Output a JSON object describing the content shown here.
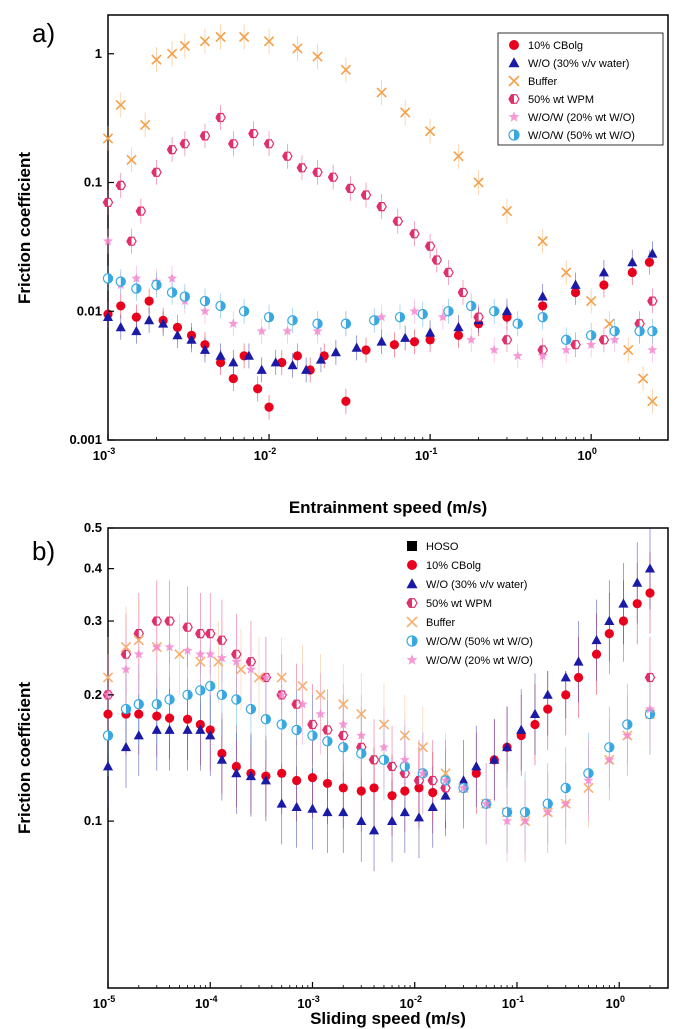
{
  "chart_data": [
    {
      "type": "scatter",
      "panel_label": "a)",
      "xlabel": "Entrainment speed (m/s)",
      "ylabel": "Friction coefficient",
      "xscale": "log",
      "yscale": "log",
      "xlim": [
        0.001,
        3
      ],
      "ylim": [
        0.001,
        2
      ],
      "x_ticks": [
        {
          "value": 0.001,
          "label": "10",
          "exp": "-3"
        },
        {
          "value": 0.01,
          "label": "10",
          "exp": "-2"
        },
        {
          "value": 0.1,
          "label": "10",
          "exp": "-1"
        },
        {
          "value": 1,
          "label": "10",
          "exp": "0"
        }
      ],
      "y_ticks": [
        {
          "value": 0.001,
          "label": "0.001"
        },
        {
          "value": 0.01,
          "label": "0.01"
        },
        {
          "value": 0.1,
          "label": "0.1"
        },
        {
          "value": 1,
          "label": "1"
        }
      ],
      "legend_position": "top-right",
      "series": [
        {
          "name": "10% CBolg",
          "color": "#e8001c",
          "marker": "circle",
          "x": [
            0.001,
            0.0012,
            0.0015,
            0.0018,
            0.0022,
            0.0027,
            0.0033,
            0.004,
            0.005,
            0.006,
            0.007,
            0.0085,
            0.01,
            0.012,
            0.015,
            0.018,
            0.022,
            0.03,
            0.04,
            0.06,
            0.08,
            0.1,
            0.15,
            0.2,
            0.3,
            0.5,
            0.8,
            1.2,
            1.8,
            2.3
          ],
          "y": [
            0.0095,
            0.011,
            0.009,
            0.012,
            0.0085,
            0.0075,
            0.0065,
            0.0055,
            0.004,
            0.003,
            0.0045,
            0.0025,
            0.0018,
            0.004,
            0.0045,
            0.0035,
            0.0045,
            0.002,
            0.005,
            0.0055,
            0.0058,
            0.006,
            0.0065,
            0.008,
            0.009,
            0.011,
            0.014,
            0.016,
            0.02,
            0.024
          ]
        },
        {
          "name": "W/O (30% v/v water)",
          "color": "#1a1aa6",
          "marker": "triangle",
          "x": [
            0.001,
            0.0012,
            0.0015,
            0.0018,
            0.0022,
            0.0027,
            0.0033,
            0.004,
            0.005,
            0.006,
            0.0075,
            0.009,
            0.011,
            0.014,
            0.017,
            0.021,
            0.026,
            0.035,
            0.05,
            0.07,
            0.1,
            0.15,
            0.2,
            0.3,
            0.5,
            0.8,
            1.2,
            1.8,
            2.4
          ],
          "y": [
            0.009,
            0.0075,
            0.007,
            0.0085,
            0.008,
            0.0065,
            0.006,
            0.005,
            0.0045,
            0.004,
            0.0045,
            0.0035,
            0.004,
            0.0038,
            0.0035,
            0.0042,
            0.0048,
            0.0052,
            0.0058,
            0.0062,
            0.0068,
            0.0075,
            0.0085,
            0.01,
            0.013,
            0.016,
            0.02,
            0.024,
            0.028
          ]
        },
        {
          "name": "Buffer",
          "color": "#f5a04a",
          "marker": "x",
          "x": [
            0.001,
            0.0012,
            0.0014,
            0.0017,
            0.002,
            0.0025,
            0.003,
            0.004,
            0.005,
            0.007,
            0.01,
            0.015,
            0.02,
            0.03,
            0.05,
            0.07,
            0.1,
            0.15,
            0.2,
            0.3,
            0.5,
            0.7,
            1.0,
            1.3,
            1.7,
            2.1,
            2.4
          ],
          "y": [
            0.22,
            0.4,
            0.15,
            0.28,
            0.9,
            1.0,
            1.15,
            1.25,
            1.35,
            1.35,
            1.25,
            1.1,
            0.95,
            0.75,
            0.5,
            0.35,
            0.25,
            0.16,
            0.1,
            0.06,
            0.035,
            0.02,
            0.012,
            0.008,
            0.005,
            0.003,
            0.002
          ]
        },
        {
          "name": "50% wt WPM",
          "color": "#e0306a",
          "marker": "hex",
          "x": [
            0.001,
            0.0012,
            0.0014,
            0.0016,
            0.002,
            0.0025,
            0.003,
            0.004,
            0.005,
            0.006,
            0.008,
            0.01,
            0.013,
            0.016,
            0.02,
            0.025,
            0.032,
            0.04,
            0.05,
            0.063,
            0.08,
            0.1,
            0.11,
            0.13,
            0.16,
            0.2,
            0.3,
            0.5,
            0.8,
            1.2,
            2.0,
            2.4
          ],
          "y": [
            0.07,
            0.095,
            0.035,
            0.06,
            0.12,
            0.18,
            0.2,
            0.23,
            0.32,
            0.2,
            0.24,
            0.2,
            0.16,
            0.13,
            0.12,
            0.11,
            0.09,
            0.08,
            0.065,
            0.05,
            0.04,
            0.032,
            0.025,
            0.02,
            0.014,
            0.009,
            0.006,
            0.005,
            0.0055,
            0.006,
            0.008,
            0.012
          ]
        },
        {
          "name": "W/O/W (20% wt W/O)",
          "color": "#f48ad0",
          "marker": "star",
          "x": [
            0.001,
            0.0012,
            0.0015,
            0.002,
            0.0025,
            0.003,
            0.004,
            0.006,
            0.009,
            0.013,
            0.02,
            0.03,
            0.05,
            0.08,
            0.12,
            0.18,
            0.25,
            0.35,
            0.5,
            0.7,
            1.0,
            1.4,
            2.0,
            2.4
          ],
          "y": [
            0.035,
            0.016,
            0.018,
            0.017,
            0.018,
            0.012,
            0.01,
            0.008,
            0.007,
            0.007,
            0.007,
            0.008,
            0.009,
            0.01,
            0.009,
            0.006,
            0.005,
            0.0045,
            0.0045,
            0.005,
            0.0055,
            0.006,
            0.007,
            0.005
          ]
        },
        {
          "name": "W/O/W (50% wt W/O)",
          "color": "#3aa8e0",
          "marker": "halfcircle",
          "x": [
            0.001,
            0.0012,
            0.0015,
            0.002,
            0.0025,
            0.003,
            0.004,
            0.005,
            0.007,
            0.01,
            0.014,
            0.02,
            0.03,
            0.045,
            0.065,
            0.09,
            0.13,
            0.18,
            0.25,
            0.35,
            0.5,
            0.7,
            1.0,
            1.4,
            2.0,
            2.4
          ],
          "y": [
            0.018,
            0.017,
            0.015,
            0.016,
            0.014,
            0.013,
            0.012,
            0.011,
            0.01,
            0.009,
            0.0085,
            0.008,
            0.008,
            0.0085,
            0.009,
            0.0095,
            0.01,
            0.011,
            0.01,
            0.008,
            0.009,
            0.006,
            0.0065,
            0.007,
            0.007,
            0.007
          ]
        }
      ]
    },
    {
      "type": "scatter",
      "panel_label": "b)",
      "xlabel": "Sliding speed (m/s)",
      "ylabel": "Friction coefficient",
      "xscale": "log",
      "yscale": "log",
      "xlim": [
        1e-05,
        3
      ],
      "ylim": [
        0.04,
        0.5
      ],
      "x_ticks": [
        {
          "value": 1e-05,
          "label": "10",
          "exp": "-5"
        },
        {
          "value": 0.0001,
          "label": "10",
          "exp": "-4"
        },
        {
          "value": 0.001,
          "label": "10",
          "exp": "-3"
        },
        {
          "value": 0.01,
          "label": "10",
          "exp": "-2"
        },
        {
          "value": 0.1,
          "label": "10",
          "exp": "-1"
        },
        {
          "value": 1,
          "label": "10",
          "exp": "0"
        }
      ],
      "y_ticks": [
        {
          "value": 0.1,
          "label": "0.1"
        },
        {
          "value": 0.2,
          "label": "0.2"
        },
        {
          "value": 0.3,
          "label": "0.3"
        },
        {
          "value": 0.4,
          "label": "0.4"
        },
        {
          "value": 0.5,
          "label": "0.5"
        }
      ],
      "legend_position": "top-right",
      "series": [
        {
          "name": "HOSO",
          "color": "#000000",
          "marker": "square",
          "x": [],
          "y": []
        },
        {
          "name": "10% CBolg",
          "color": "#e8001c",
          "marker": "circle",
          "x": [
            1e-05,
            1.5e-05,
            2e-05,
            3e-05,
            4e-05,
            6e-05,
            8e-05,
            0.0001,
            0.00013,
            0.00018,
            0.00025,
            0.00035,
            0.0005,
            0.0007,
            0.001,
            0.0014,
            0.002,
            0.003,
            0.004,
            0.006,
            0.008,
            0.011,
            0.015,
            0.02,
            0.03,
            0.04,
            0.06,
            0.08,
            0.11,
            0.15,
            0.2,
            0.3,
            0.4,
            0.6,
            0.8,
            1.1,
            1.5,
            2.0
          ],
          "y": [
            0.18,
            0.18,
            0.18,
            0.178,
            0.176,
            0.175,
            0.17,
            0.165,
            0.145,
            0.135,
            0.13,
            0.128,
            0.13,
            0.125,
            0.127,
            0.123,
            0.12,
            0.118,
            0.12,
            0.115,
            0.118,
            0.12,
            0.117,
            0.12,
            0.12,
            0.13,
            0.14,
            0.15,
            0.16,
            0.17,
            0.185,
            0.2,
            0.22,
            0.25,
            0.28,
            0.3,
            0.33,
            0.35
          ]
        },
        {
          "name": "W/O (30% v/v water)",
          "color": "#1a1aa6",
          "marker": "triangle",
          "x": [
            1e-05,
            1.5e-05,
            2e-05,
            3e-05,
            4e-05,
            6e-05,
            8e-05,
            0.0001,
            0.00013,
            0.00018,
            0.00025,
            0.00035,
            0.0005,
            0.0007,
            0.001,
            0.0014,
            0.002,
            0.003,
            0.004,
            0.006,
            0.008,
            0.011,
            0.015,
            0.02,
            0.03,
            0.04,
            0.06,
            0.08,
            0.11,
            0.15,
            0.2,
            0.3,
            0.4,
            0.6,
            0.8,
            1.1,
            1.5,
            2.0
          ],
          "y": [
            0.135,
            0.15,
            0.16,
            0.165,
            0.165,
            0.165,
            0.165,
            0.16,
            0.14,
            0.13,
            0.128,
            0.125,
            0.11,
            0.108,
            0.107,
            0.105,
            0.105,
            0.1,
            0.095,
            0.1,
            0.105,
            0.102,
            0.108,
            0.115,
            0.125,
            0.135,
            0.14,
            0.15,
            0.165,
            0.18,
            0.2,
            0.22,
            0.24,
            0.27,
            0.3,
            0.33,
            0.37,
            0.4
          ]
        },
        {
          "name": "50% wt  WPM",
          "color": "#e0306a",
          "marker": "hex",
          "x": [
            1e-05,
            1.5e-05,
            2e-05,
            3e-05,
            4e-05,
            6e-05,
            8e-05,
            0.0001,
            0.00013,
            0.00018,
            0.00025,
            0.00035,
            0.0005,
            0.0007,
            0.001,
            0.0014,
            0.002,
            0.003,
            0.004,
            0.006,
            0.008,
            0.011,
            0.015,
            0.02,
            2.0
          ],
          "y": [
            0.2,
            0.25,
            0.28,
            0.3,
            0.3,
            0.29,
            0.28,
            0.28,
            0.27,
            0.25,
            0.24,
            0.22,
            0.2,
            0.19,
            0.17,
            0.165,
            0.16,
            0.15,
            0.14,
            0.135,
            0.13,
            0.125,
            0.125,
            0.12,
            0.22
          ]
        },
        {
          "name": "Buffer",
          "color": "#f5b070",
          "marker": "x",
          "x": [
            1e-05,
            1.5e-05,
            2e-05,
            3e-05,
            5e-05,
            8e-05,
            0.00012,
            0.0002,
            0.0003,
            0.0005,
            0.0008,
            0.0012,
            0.002,
            0.003,
            0.005,
            0.008,
            0.012,
            0.02,
            0.03,
            0.05,
            0.08,
            0.12,
            0.2,
            0.3,
            0.5,
            0.8,
            1.2,
            2.0
          ],
          "y": [
            0.22,
            0.26,
            0.27,
            0.26,
            0.25,
            0.24,
            0.24,
            0.23,
            0.22,
            0.22,
            0.21,
            0.2,
            0.19,
            0.18,
            0.17,
            0.16,
            0.15,
            0.13,
            0.12,
            0.11,
            0.105,
            0.1,
            0.105,
            0.11,
            0.12,
            0.14,
            0.16,
            0.18
          ]
        },
        {
          "name": "W/O/W (50% wt W/O)",
          "color": "#3aa8e0",
          "marker": "halfcircle",
          "x": [
            1e-05,
            1.5e-05,
            2e-05,
            3e-05,
            4e-05,
            6e-05,
            8e-05,
            0.0001,
            0.00013,
            0.00018,
            0.00025,
            0.00035,
            0.0005,
            0.0007,
            0.001,
            0.0014,
            0.002,
            0.003,
            0.005,
            0.008,
            0.012,
            0.02,
            0.03,
            0.05,
            0.08,
            0.12,
            0.2,
            0.3,
            0.5,
            0.8,
            1.2,
            2.0
          ],
          "y": [
            0.16,
            0.185,
            0.19,
            0.19,
            0.195,
            0.2,
            0.205,
            0.21,
            0.2,
            0.195,
            0.185,
            0.175,
            0.17,
            0.165,
            0.16,
            0.155,
            0.15,
            0.145,
            0.14,
            0.135,
            0.13,
            0.125,
            0.12,
            0.11,
            0.105,
            0.105,
            0.11,
            0.12,
            0.13,
            0.15,
            0.17,
            0.18
          ]
        },
        {
          "name": "W/O/W (20% wt W/O)",
          "color": "#f48ad0",
          "marker": "star",
          "x": [
            1e-05,
            1.5e-05,
            2e-05,
            3e-05,
            4e-05,
            6e-05,
            8e-05,
            0.0001,
            0.00013,
            0.00018,
            0.00025,
            0.00035,
            0.0005,
            0.0008,
            0.0012,
            0.002,
            0.003,
            0.005,
            0.008,
            0.012,
            0.02,
            0.03,
            0.05,
            0.08,
            0.12,
            0.2,
            0.3,
            0.5,
            0.8,
            1.2,
            2.0
          ],
          "y": [
            0.2,
            0.23,
            0.25,
            0.26,
            0.26,
            0.255,
            0.25,
            0.25,
            0.245,
            0.24,
            0.23,
            0.22,
            0.2,
            0.19,
            0.18,
            0.17,
            0.16,
            0.15,
            0.14,
            0.13,
            0.125,
            0.12,
            0.11,
            0.1,
            0.1,
            0.105,
            0.11,
            0.125,
            0.14,
            0.16,
            0.185
          ]
        }
      ]
    }
  ]
}
